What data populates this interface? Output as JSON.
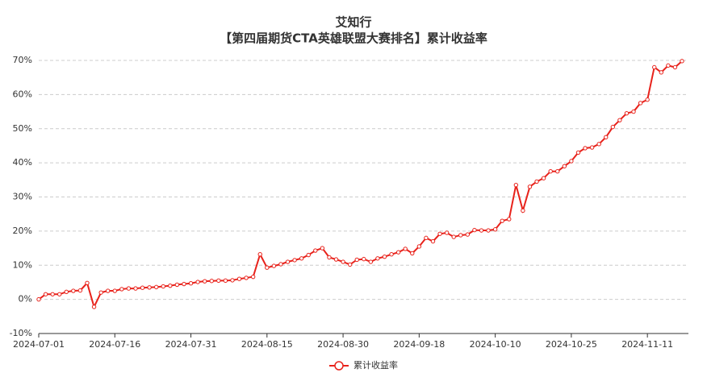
{
  "chart_data": {
    "type": "line",
    "title": "艾知行",
    "subtitle": "【第四届期货CTA英雄联盟大赛排名】累计收益率",
    "categories": [
      "2024-07-01",
      null,
      null,
      null,
      null,
      null,
      null,
      null,
      null,
      null,
      null,
      "2024-07-16",
      null,
      null,
      null,
      null,
      null,
      null,
      null,
      null,
      null,
      null,
      "2024-07-31",
      null,
      null,
      null,
      null,
      null,
      null,
      null,
      null,
      null,
      null,
      "2024-08-15",
      null,
      null,
      null,
      null,
      null,
      null,
      null,
      null,
      null,
      null,
      "2024-08-30",
      null,
      null,
      null,
      null,
      null,
      null,
      null,
      null,
      null,
      null,
      "2024-09-18",
      null,
      null,
      null,
      null,
      null,
      null,
      null,
      null,
      null,
      null,
      "2024-10-10",
      null,
      null,
      null,
      null,
      null,
      null,
      null,
      null,
      null,
      null,
      "2024-10-25",
      null,
      null,
      null,
      null,
      null,
      null,
      null,
      null,
      null,
      null,
      "2024-11-11",
      null,
      null,
      null,
      null,
      null
    ],
    "series": [
      {
        "name": "累计收益率",
        "color": "#e8221b",
        "values": [
          0,
          1.5,
          1.5,
          1.5,
          2.2,
          2.5,
          2.6,
          4.8,
          -2.2,
          2.0,
          2.5,
          2.5,
          3.0,
          3.2,
          3.2,
          3.4,
          3.5,
          3.6,
          3.8,
          4.0,
          4.3,
          4.5,
          4.7,
          5.1,
          5.3,
          5.4,
          5.5,
          5.5,
          5.6,
          6.0,
          6.3,
          6.6,
          13.2,
          9.3,
          9.8,
          10.3,
          11.0,
          11.5,
          12.0,
          13.0,
          14.3,
          15.0,
          12.3,
          11.7,
          11.0,
          10.2,
          11.6,
          11.8,
          11.0,
          12.0,
          12.5,
          13.2,
          13.8,
          14.8,
          13.5,
          15.5,
          18.0,
          17.0,
          19.2,
          19.5,
          18.3,
          18.8,
          19.0,
          20.3,
          20.2,
          20.2,
          20.5,
          23.0,
          23.5,
          33.5,
          26.0,
          33.0,
          34.5,
          35.5,
          37.5,
          37.5,
          39.0,
          40.5,
          43.0,
          44.3,
          44.5,
          45.5,
          47.5,
          50.5,
          52.5,
          54.5,
          55.0,
          57.5,
          58.5,
          68.0,
          66.5,
          68.5,
          68.0,
          69.8
        ]
      }
    ],
    "ylim": [
      -10,
      70
    ],
    "yticks": [
      {
        "value": -10,
        "label": "-10%"
      },
      {
        "value": 0,
        "label": "0%"
      },
      {
        "value": 10,
        "label": "10%"
      },
      {
        "value": 20,
        "label": "20%"
      },
      {
        "value": 30,
        "label": "30%"
      },
      {
        "value": 40,
        "label": "40%"
      },
      {
        "value": 50,
        "label": "50%"
      },
      {
        "value": 60,
        "label": "60%"
      },
      {
        "value": 70,
        "label": "70%"
      }
    ],
    "grid": true,
    "legend": "bottom"
  }
}
